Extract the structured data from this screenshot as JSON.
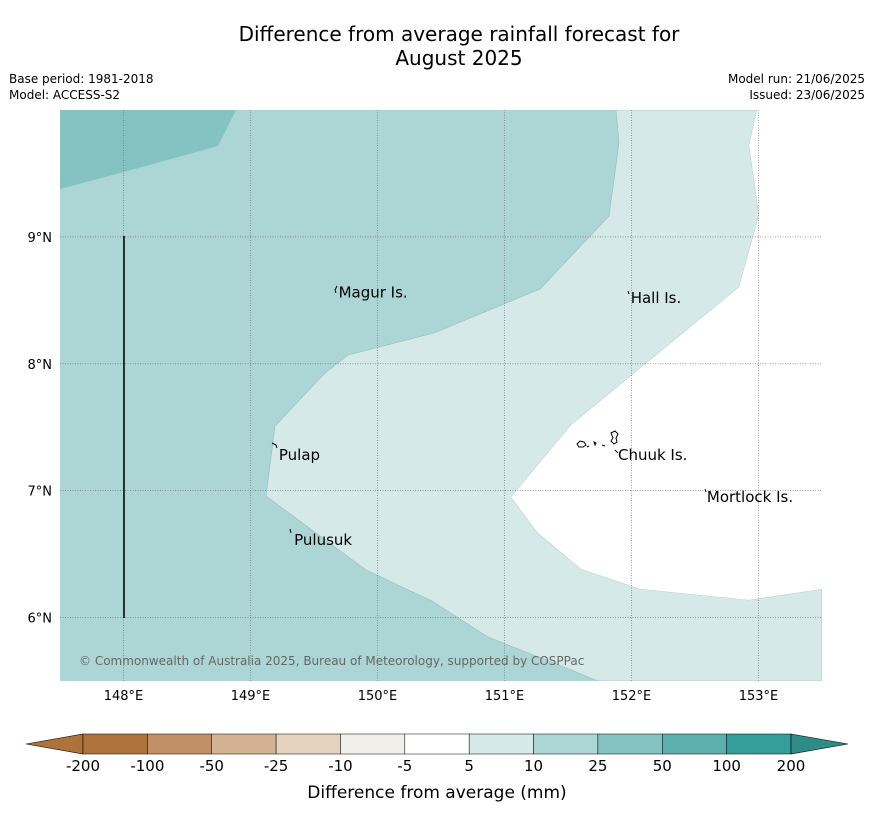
{
  "title": {
    "line1": "Difference from average rainfall forecast for",
    "line2": "August 2025"
  },
  "meta": {
    "base_period": "Base period: 1981-2018",
    "model": "Model: ACCESS-S2",
    "model_run": "Model run: 21/06/2025",
    "issued": "Issued: 23/06/2025"
  },
  "map": {
    "lon_range": [
      147.5,
      153.5
    ],
    "lat_range": [
      5.5,
      10.0
    ],
    "lon_ticks": [
      {
        "lon": 148,
        "label": "148°E"
      },
      {
        "lon": 149,
        "label": "149°E"
      },
      {
        "lon": 150,
        "label": "150°E"
      },
      {
        "lon": 151,
        "label": "151°E"
      },
      {
        "lon": 152,
        "label": "152°E"
      },
      {
        "lon": 153,
        "label": "153°E"
      }
    ],
    "lat_ticks": [
      {
        "lat": 9,
        "label": "9°N"
      },
      {
        "lat": 8,
        "label": "8°N"
      },
      {
        "lat": 7,
        "label": "7°N"
      },
      {
        "lat": 6,
        "label": "6°N"
      }
    ],
    "places": [
      {
        "name": "Magur Is.",
        "lon": 149.67,
        "lat": 8.56
      },
      {
        "name": "Hall Is.",
        "lon": 151.97,
        "lat": 8.52
      },
      {
        "name": "Pulap",
        "lon": 149.2,
        "lat": 7.28
      },
      {
        "name": "Chuuk Is.",
        "lon": 151.87,
        "lat": 7.28
      },
      {
        "name": "Mortlock Is.",
        "lon": 152.57,
        "lat": 6.95
      },
      {
        "name": "Pulusuk",
        "lon": 149.32,
        "lat": 6.61
      }
    ],
    "copyright": "© Commonwealth of Australia 2025, Bureau of Meteorology, supported by COSPPac",
    "colors": {
      "band_25_50": "#84c3c1",
      "band_10_25": "#acd5d5",
      "band_5_10": "#d4e9e8",
      "band_m5_5": "#ffffff"
    }
  },
  "colorbar": {
    "title": "Difference from average (mm)",
    "labels": [
      "-200",
      "-100",
      "-50",
      "-25",
      "-10",
      "-5",
      "5",
      "10",
      "25",
      "50",
      "100",
      "200"
    ],
    "colors": [
      "#ad733a",
      "#ad733a",
      "#c19066",
      "#d2b290",
      "#e5d2bf",
      "#f1efea",
      "#ffffff",
      "#d5eae8",
      "#acd6d5",
      "#84c3c1",
      "#5dafad",
      "#359d9a",
      "#2e8b87"
    ]
  }
}
